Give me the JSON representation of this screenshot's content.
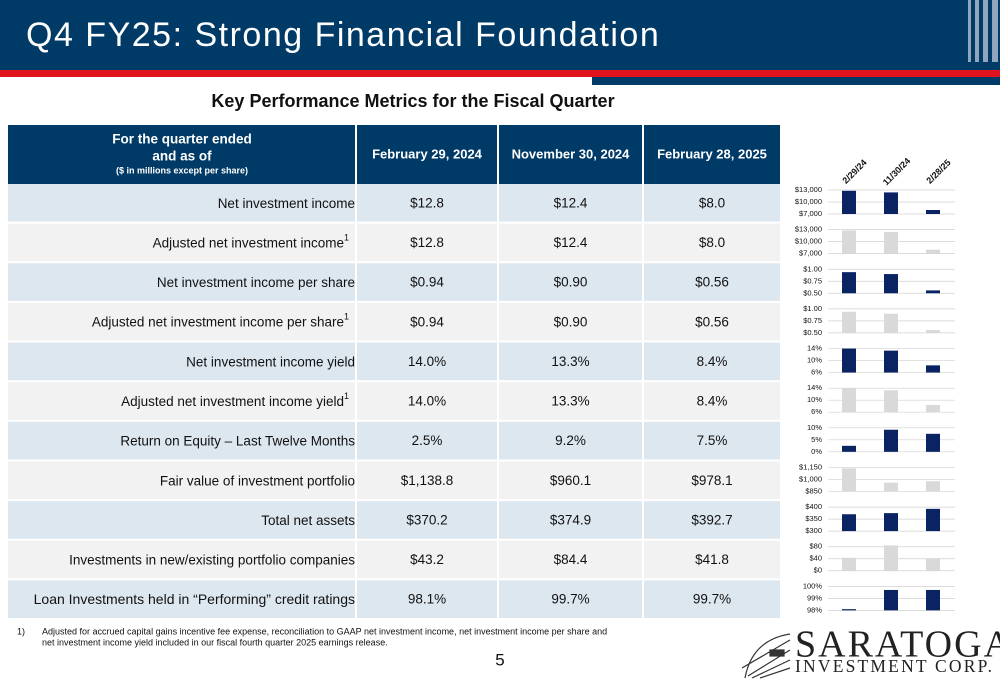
{
  "header": {
    "title": "Q4 FY25: Strong Financial Foundation"
  },
  "subtitle": "Key Performance Metrics for the Fiscal Quarter",
  "table": {
    "corner": [
      "For the quarter ended",
      "and as of",
      "($ in millions except per share)"
    ],
    "columns": [
      "February 29, 2024",
      "November 30, 2024",
      "February 28, 2025"
    ],
    "rows": [
      {
        "label": "Net investment income",
        "values": [
          "$12.8",
          "$12.4",
          "$8.0"
        ]
      },
      {
        "label": "Adjusted net investment income",
        "note": "1",
        "values": [
          "$12.8",
          "$12.4",
          "$8.0"
        ]
      },
      {
        "label": "Net investment income per share",
        "values": [
          "$0.94",
          "$0.90",
          "$0.56"
        ]
      },
      {
        "label": "Adjusted net investment income per share",
        "note": "1",
        "values": [
          "$0.94",
          "$0.90",
          "$0.56"
        ]
      },
      {
        "label": "Net investment income yield",
        "values": [
          "14.0%",
          "13.3%",
          "8.4%"
        ]
      },
      {
        "label": "Adjusted net investment income yield",
        "note": "1",
        "values": [
          "14.0%",
          "13.3%",
          "8.4%"
        ]
      },
      {
        "label": "Return on Equity – Last Twelve Months",
        "values": [
          "2.5%",
          "9.2%",
          "7.5%"
        ]
      },
      {
        "label": "Fair value of investment portfolio",
        "values": [
          "$1,138.8",
          "$960.1",
          "$978.1"
        ]
      },
      {
        "label": "Total net assets",
        "values": [
          "$370.2",
          "$374.9",
          "$392.7"
        ]
      },
      {
        "label": "Investments in new/existing portfolio companies",
        "values": [
          "$43.2",
          "$84.4",
          "$41.8"
        ]
      },
      {
        "label": "Loan Investments held in “Performing” credit ratings",
        "values": [
          "98.1%",
          "99.7%",
          "99.7%"
        ]
      }
    ]
  },
  "chart_columns": [
    "2/29/24",
    "11/30/24",
    "2/28/25"
  ],
  "chart_data": [
    {
      "type": "bar",
      "color": "#0a2463",
      "ylim": [
        7000,
        13000
      ],
      "yticks": [
        {
          "value": 13000,
          "label": "$13,000"
        },
        {
          "value": 10000,
          "label": "$10,000"
        },
        {
          "value": 7000,
          "label": "$7,000"
        }
      ],
      "values": [
        12800,
        12400,
        8000
      ]
    },
    {
      "type": "bar",
      "color": "#d9d9d9",
      "ylim": [
        7000,
        13000
      ],
      "yticks": [
        {
          "value": 13000,
          "label": "$13,000"
        },
        {
          "value": 10000,
          "label": "$10,000"
        },
        {
          "value": 7000,
          "label": "$7,000"
        }
      ],
      "values": [
        12800,
        12400,
        8000
      ]
    },
    {
      "type": "bar",
      "color": "#0a2463",
      "ylim": [
        0.5,
        1.0
      ],
      "yticks": [
        {
          "value": 1.0,
          "label": "$1.00"
        },
        {
          "value": 0.75,
          "label": "$0.75"
        },
        {
          "value": 0.5,
          "label": "$0.50"
        }
      ],
      "values": [
        0.94,
        0.9,
        0.56
      ]
    },
    {
      "type": "bar",
      "color": "#d9d9d9",
      "ylim": [
        0.5,
        1.0
      ],
      "yticks": [
        {
          "value": 1.0,
          "label": "$1.00"
        },
        {
          "value": 0.75,
          "label": "$0.75"
        },
        {
          "value": 0.5,
          "label": "$0.50"
        }
      ],
      "values": [
        0.94,
        0.9,
        0.56
      ]
    },
    {
      "type": "bar",
      "color": "#0a2463",
      "ylim": [
        6,
        14
      ],
      "yticks": [
        {
          "value": 14,
          "label": "14%"
        },
        {
          "value": 10,
          "label": "10%"
        },
        {
          "value": 6,
          "label": "6%"
        }
      ],
      "values": [
        14.0,
        13.3,
        8.4
      ]
    },
    {
      "type": "bar",
      "color": "#d9d9d9",
      "ylim": [
        6,
        14
      ],
      "yticks": [
        {
          "value": 14,
          "label": "14%"
        },
        {
          "value": 10,
          "label": "10%"
        },
        {
          "value": 6,
          "label": "6%"
        }
      ],
      "values": [
        14.0,
        13.3,
        8.4
      ]
    },
    {
      "type": "bar",
      "color": "#0a2463",
      "ylim": [
        0,
        10
      ],
      "yticks": [
        {
          "value": 10,
          "label": "10%"
        },
        {
          "value": 5,
          "label": "5%"
        },
        {
          "value": 0,
          "label": "0%"
        }
      ],
      "values": [
        2.5,
        9.2,
        7.5
      ]
    },
    {
      "type": "bar",
      "color": "#d9d9d9",
      "ylim": [
        850,
        1150
      ],
      "yticks": [
        {
          "value": 1150,
          "label": "$1,150"
        },
        {
          "value": 1000,
          "label": "$1,000"
        },
        {
          "value": 850,
          "label": "$850"
        }
      ],
      "values": [
        1138.8,
        960.1,
        978.1
      ]
    },
    {
      "type": "bar",
      "color": "#0a2463",
      "ylim": [
        300,
        400
      ],
      "yticks": [
        {
          "value": 400,
          "label": "$400"
        },
        {
          "value": 350,
          "label": "$350"
        },
        {
          "value": 300,
          "label": "$300"
        }
      ],
      "values": [
        370.2,
        374.9,
        392.7
      ]
    },
    {
      "type": "bar",
      "color": "#d9d9d9",
      "ylim": [
        0,
        80
      ],
      "yticks": [
        {
          "value": 80,
          "label": "$80"
        },
        {
          "value": 40,
          "label": "$40"
        },
        {
          "value": 0,
          "label": "$0"
        }
      ],
      "values": [
        43.2,
        84.4,
        41.8
      ]
    },
    {
      "type": "bar",
      "color": "#0a2463",
      "ylim": [
        98,
        100
      ],
      "yticks": [
        {
          "value": 100,
          "label": "100%"
        },
        {
          "value": 99,
          "label": "99%"
        },
        {
          "value": 98,
          "label": "98%"
        }
      ],
      "values": [
        98.1,
        99.7,
        99.7
      ]
    }
  ],
  "footnote": {
    "marker": "1)",
    "lines": [
      "Adjusted for accrued capital gains incentive fee expense, reconciliation to GAAP net investment income, net investment income per share and",
      "net investment income yield included in our fiscal fourth quarter 2025 earnings release."
    ]
  },
  "page_number": "5",
  "logo": {
    "name": "SARATOGA",
    "tagline": "INVESTMENT CORP."
  }
}
